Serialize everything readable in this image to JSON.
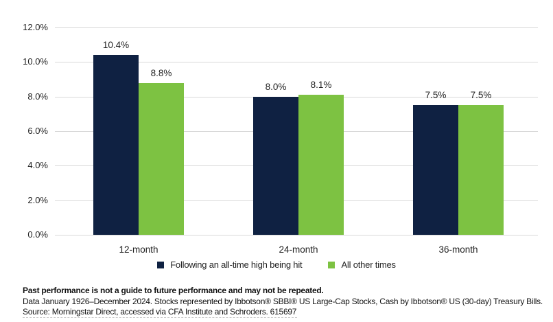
{
  "chart_data": {
    "type": "bar",
    "title": "",
    "categories": [
      "12-month",
      "24-month",
      "36-month"
    ],
    "series": [
      {
        "name": "Following an all-time high being hit",
        "color": "#0F2142",
        "values": [
          10.4,
          8.0,
          7.5
        ],
        "labels": [
          "10.4%",
          "8.0%",
          "7.5%"
        ]
      },
      {
        "name": "All other times",
        "color": "#7DC242",
        "values": [
          8.8,
          8.1,
          7.5
        ],
        "labels": [
          "8.8%",
          "8.1%",
          "7.5%"
        ]
      }
    ],
    "y_axis": {
      "min": 0,
      "max": 12,
      "tick_step": 2,
      "tick_labels": [
        "0.0%",
        "2.0%",
        "4.0%",
        "6.0%",
        "8.0%",
        "10.0%",
        "12.0%"
      ]
    },
    "grid": "horizontal",
    "legend_position": "bottom",
    "gridline_color": "#D8D8D8",
    "label_color": "#1F1F1F"
  },
  "footer": {
    "disclaimer": "Past performance is not a guide to future performance and may not be repeated.",
    "data_note": "Data January 1926–December 2024. Stocks represented by Ibbotson® SBBI® US Large-Cap Stocks, Cash by Ibbotson® US (30-day) Treasury Bills.",
    "source": "Source: Morningstar Direct, accessed via CFA Institute and Schroders. 615697"
  }
}
